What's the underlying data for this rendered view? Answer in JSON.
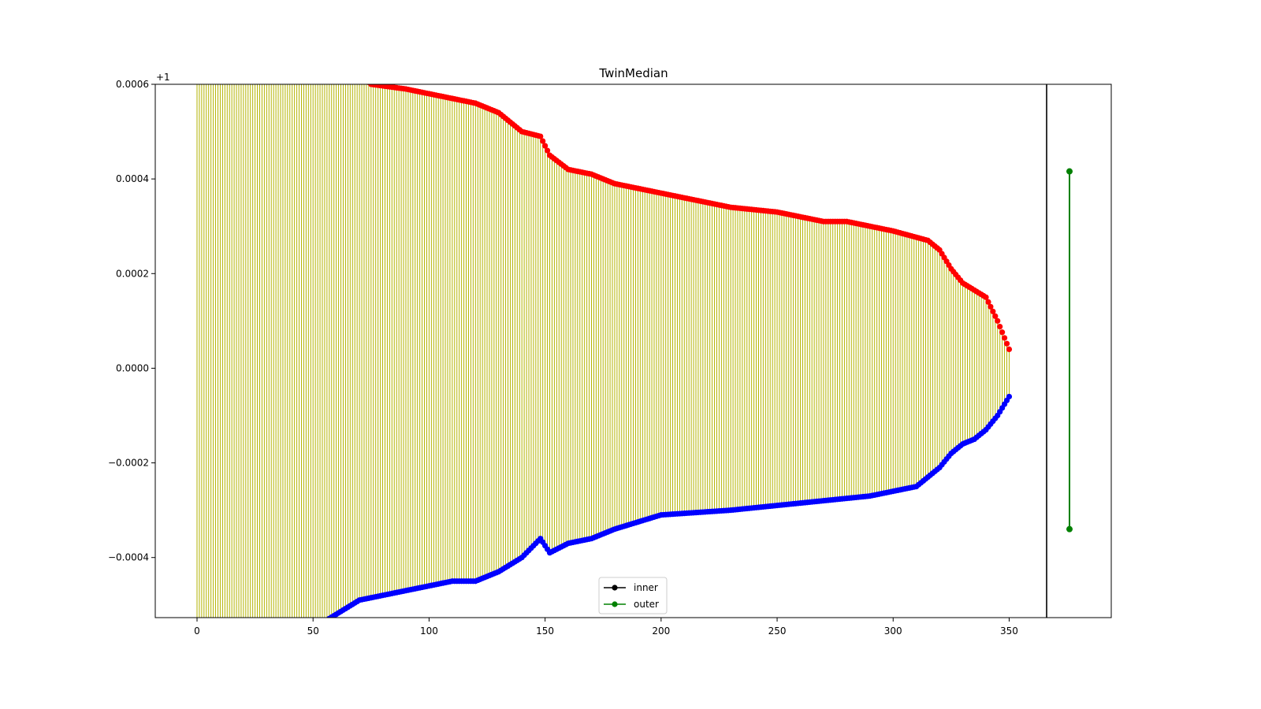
{
  "chart_data": {
    "type": "line",
    "title": "TwinMedian",
    "xlabel": "",
    "ylabel": "",
    "y_offset_label": "+1",
    "xlim": [
      -18,
      394
    ],
    "ylim": [
      -0.000527,
      0.0006
    ],
    "x_ticks": [
      0,
      50,
      100,
      150,
      200,
      250,
      300,
      350
    ],
    "x_tick_labels": [
      "0",
      "50",
      "100",
      "150",
      "200",
      "250",
      "300",
      "350"
    ],
    "y_ticks": [
      -0.0004,
      -0.0002,
      0.0,
      0.0002,
      0.0004,
      0.0006
    ],
    "y_tick_labels": [
      "−0.0004",
      "−0.0002",
      "0.0000",
      "0.0002",
      "0.0004",
      "0.0006"
    ],
    "grid": false,
    "legend_position": "bottom-center",
    "colors": {
      "upper_points": "#ff0000",
      "lower_points": "#0000ff",
      "stems": "#b3b300",
      "inner": "#000000",
      "outer": "#008000"
    },
    "legend": [
      {
        "label": "inner",
        "color": "#000000"
      },
      {
        "label": "outer",
        "color": "#008000"
      }
    ],
    "series": [
      {
        "name": "upper",
        "x_start": 0,
        "anchors_x": [
          0,
          70,
          75,
          90,
          100,
          120,
          130,
          140,
          148,
          152,
          160,
          170,
          180,
          200,
          230,
          250,
          270,
          280,
          300,
          315,
          320,
          325,
          330,
          340,
          345,
          350
        ],
        "anchors_y": [
          0.00085,
          0.00062,
          0.0006,
          0.00059,
          0.00058,
          0.00056,
          0.00054,
          0.0005,
          0.00049,
          0.00045,
          0.00042,
          0.00041,
          0.00039,
          0.00037,
          0.00034,
          0.00033,
          0.00031,
          0.00031,
          0.00029,
          0.00027,
          0.00025,
          0.00021,
          0.00018,
          0.00015,
          0.0001,
          4e-05
        ]
      },
      {
        "name": "lower",
        "x_start": 0,
        "anchors_x": [
          0,
          60,
          70,
          90,
          110,
          120,
          130,
          140,
          148,
          152,
          160,
          170,
          180,
          200,
          230,
          250,
          270,
          290,
          310,
          320,
          325,
          330,
          335,
          340,
          345,
          350
        ],
        "anchors_y": [
          -0.0007,
          -0.00052,
          -0.00049,
          -0.00047,
          -0.00045,
          -0.00045,
          -0.00043,
          -0.0004,
          -0.00036,
          -0.00039,
          -0.00037,
          -0.00036,
          -0.00034,
          -0.00031,
          -0.0003,
          -0.00029,
          -0.00028,
          -0.00027,
          -0.00025,
          -0.00021,
          -0.00018,
          -0.00016,
          -0.00015,
          -0.00013,
          -0.0001,
          -6e-05
        ]
      },
      {
        "name": "outer",
        "x": [
          376,
          376
        ],
        "y": [
          0.000416,
          -0.00034
        ]
      }
    ]
  }
}
